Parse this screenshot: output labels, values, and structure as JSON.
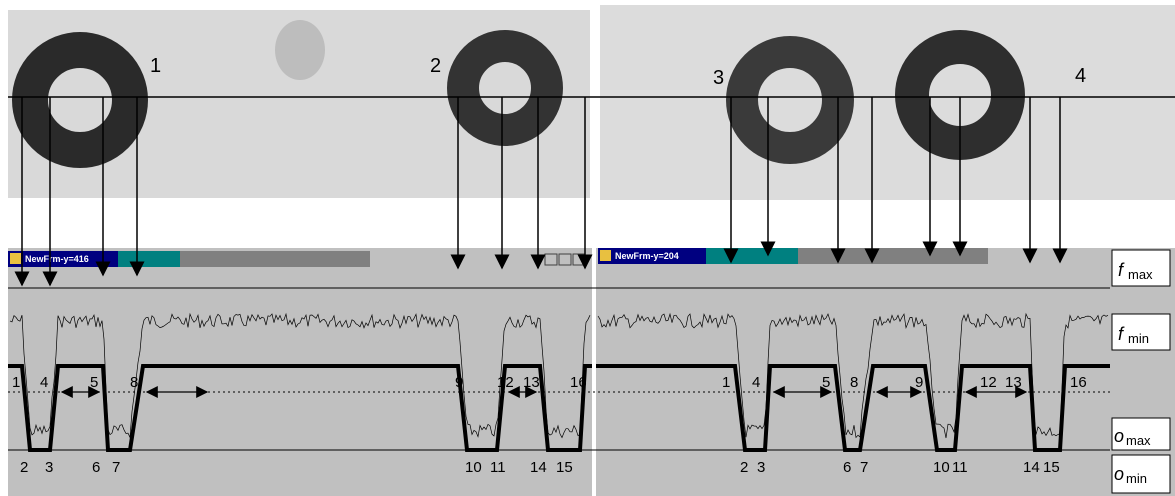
{
  "rings": [
    "1",
    "2",
    "3",
    "4"
  ],
  "panels": [
    {
      "title": "NewFrm-y=416",
      "upper_labels": [
        "1",
        "4",
        "5",
        "8",
        "9",
        "12",
        "13",
        "16"
      ],
      "lower_labels": [
        "2",
        "3",
        "6",
        "7",
        "10",
        "11",
        "14",
        "15"
      ]
    },
    {
      "title": "NewFrm-y=204",
      "upper_labels": [
        "1",
        "4",
        "5",
        "8",
        "9",
        "12",
        "13",
        "16"
      ],
      "lower_labels": [
        "2",
        "3",
        "6",
        "7",
        "10",
        "11",
        "14",
        "15"
      ]
    }
  ],
  "levels": [
    {
      "symbol": "f",
      "sub": "max"
    },
    {
      "symbol": "f",
      "sub": "min"
    },
    {
      "symbol": "o",
      "sub": "max"
    },
    {
      "symbol": "o",
      "sub": "min"
    }
  ]
}
